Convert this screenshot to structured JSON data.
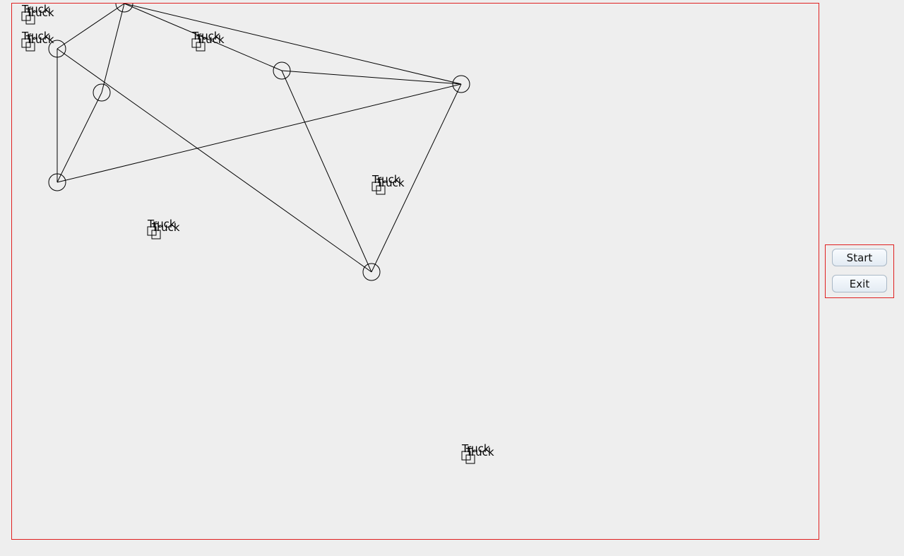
{
  "controls": {
    "start_label": "Start",
    "exit_label": "Exit"
  },
  "colors": {
    "background": "#eeeeee",
    "panel_border": "#e02020",
    "stroke": "#000000"
  },
  "trucks": [
    {
      "label": "Truck"
    },
    {
      "label": "Truck"
    },
    {
      "label": "Truck"
    },
    {
      "label": "Truck"
    },
    {
      "label": "Truck"
    },
    {
      "label": "Truck"
    },
    {
      "label": "Truck"
    },
    {
      "label": "Truck"
    },
    {
      "label": "Truck"
    },
    {
      "label": "Truck"
    },
    {
      "label": "Truck"
    },
    {
      "label": "Truck"
    }
  ]
}
